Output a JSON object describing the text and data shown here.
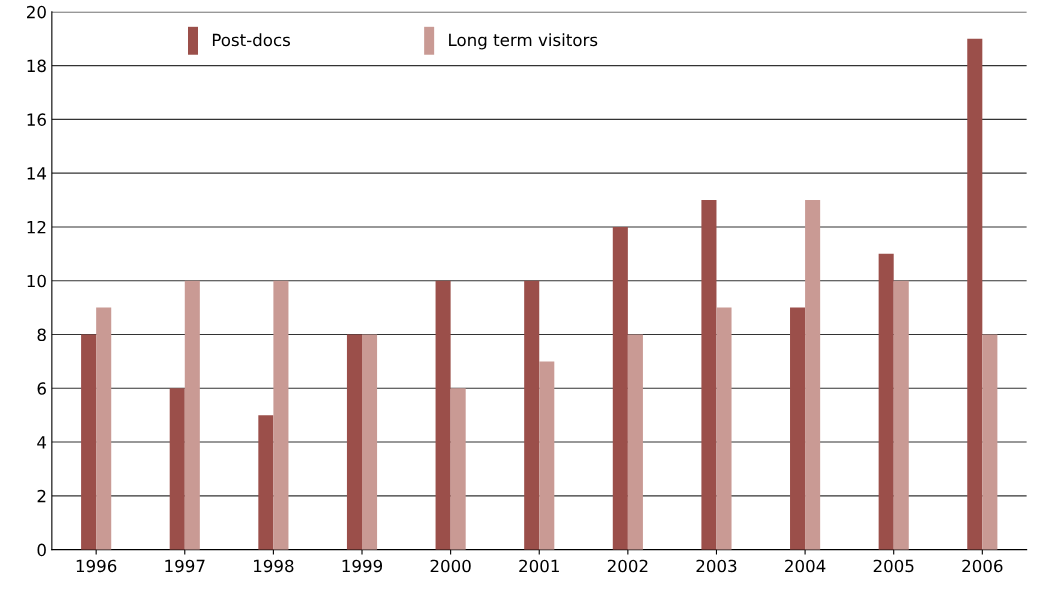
{
  "chart_data": {
    "type": "bar",
    "categories": [
      "1996",
      "1997",
      "1998",
      "1999",
      "2000",
      "2001",
      "2002",
      "2003",
      "2004",
      "2005",
      "2006"
    ],
    "series": [
      {
        "name": "Post-docs",
        "color": "#9b4f4a",
        "values": [
          8,
          6,
          5,
          8,
          10,
          10,
          12,
          13,
          9,
          11,
          19
        ]
      },
      {
        "name": "Long term visitors",
        "color": "#c99a94",
        "values": [
          9,
          10,
          10,
          8,
          6,
          7,
          8,
          9,
          13,
          10,
          8
        ]
      }
    ],
    "ylim": [
      0,
      20
    ],
    "yticks": [
      0,
      2,
      4,
      6,
      8,
      10,
      12,
      14,
      16,
      18,
      20
    ],
    "grid": "y",
    "legend": "top"
  }
}
